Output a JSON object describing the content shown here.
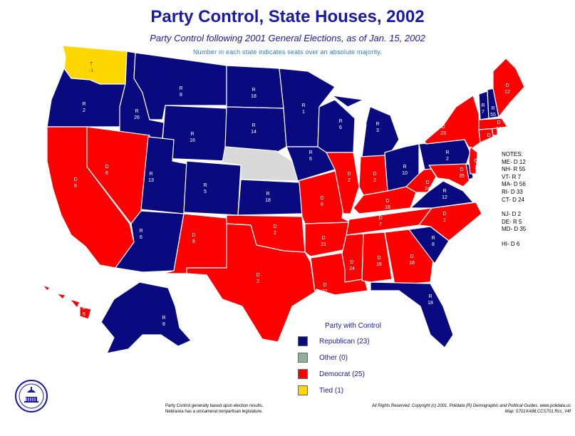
{
  "header": {
    "title": "Party Control, State Houses, 2002",
    "subtitle": "Party Control following 2001 General Elections, as of Jan. 15, 2002",
    "note": "Number in each state indicates seats over an absolute majority."
  },
  "colors": {
    "republican": "#0a0a80",
    "democrat": "#ff0000",
    "other": "#8fb09a",
    "tied": "#ffd700",
    "unicameral": "#d9d9d9",
    "water": "#ffffff"
  },
  "states": [
    {
      "id": "WA",
      "party": "tied",
      "label": [
        "T",
        "-1"
      ]
    },
    {
      "id": "OR",
      "party": "republican",
      "label": [
        "R",
        "2"
      ]
    },
    {
      "id": "CA",
      "party": "democrat",
      "label": [
        "D",
        "8"
      ]
    },
    {
      "id": "ID",
      "party": "republican",
      "label": [
        "R",
        "26"
      ]
    },
    {
      "id": "NV",
      "party": "democrat",
      "label": [
        "D",
        "6"
      ]
    },
    {
      "id": "MT",
      "party": "republican",
      "label": [
        "R",
        "8"
      ]
    },
    {
      "id": "WY",
      "party": "republican",
      "label": [
        "R",
        "16"
      ]
    },
    {
      "id": "UT",
      "party": "republican",
      "label": [
        "R",
        "13"
      ]
    },
    {
      "id": "AZ",
      "party": "republican",
      "label": [
        "R",
        "6"
      ]
    },
    {
      "id": "CO",
      "party": "republican",
      "label": [
        "R",
        "5"
      ]
    },
    {
      "id": "NM",
      "party": "democrat",
      "label": [
        "D",
        "8"
      ]
    },
    {
      "id": "ND",
      "party": "republican",
      "label": [
        "R",
        "18"
      ]
    },
    {
      "id": "SD",
      "party": "republican",
      "label": [
        "R",
        "14"
      ]
    },
    {
      "id": "NE",
      "party": "unicameral",
      "label": []
    },
    {
      "id": "KS",
      "party": "republican",
      "label": [
        "R",
        "18"
      ]
    },
    {
      "id": "OK",
      "party": "democrat",
      "label": [
        "D",
        "2"
      ]
    },
    {
      "id": "TX",
      "party": "democrat",
      "label": [
        "D",
        "2"
      ]
    },
    {
      "id": "MN",
      "party": "republican",
      "label": [
        "R",
        "1"
      ]
    },
    {
      "id": "IA",
      "party": "republican",
      "label": [
        "R",
        "6"
      ]
    },
    {
      "id": "MO",
      "party": "democrat",
      "label": [
        "D",
        "6"
      ]
    },
    {
      "id": "AR",
      "party": "democrat",
      "label": [
        "D",
        "21"
      ]
    },
    {
      "id": "LA",
      "party": "democrat",
      "label": [
        "D",
        "21"
      ]
    },
    {
      "id": "WI",
      "party": "republican",
      "label": [
        "R",
        "6"
      ]
    },
    {
      "id": "IL",
      "party": "democrat",
      "label": [
        "D",
        "2"
      ]
    },
    {
      "id": "MI",
      "party": "republican",
      "label": [
        "R",
        "3"
      ]
    },
    {
      "id": "IN",
      "party": "democrat",
      "label": [
        "D",
        "2"
      ]
    },
    {
      "id": "OH",
      "party": "republican",
      "label": [
        "R",
        "10"
      ]
    },
    {
      "id": "KY",
      "party": "democrat",
      "label": [
        "D",
        "18"
      ]
    },
    {
      "id": "TN",
      "party": "democrat",
      "label": [
        "D",
        "7"
      ]
    },
    {
      "id": "MS",
      "party": "democrat",
      "label": [
        "D",
        "24"
      ]
    },
    {
      "id": "AL",
      "party": "democrat",
      "label": [
        "D",
        "16"
      ]
    },
    {
      "id": "GA",
      "party": "democrat",
      "label": [
        "D",
        "18"
      ]
    },
    {
      "id": "FL",
      "party": "republican",
      "label": [
        "R",
        "18"
      ]
    },
    {
      "id": "SC",
      "party": "republican",
      "label": [
        "R",
        "8"
      ]
    },
    {
      "id": "NC",
      "party": "democrat",
      "label": [
        "D",
        "1"
      ]
    },
    {
      "id": "VA",
      "party": "republican",
      "label": [
        "R",
        "12"
      ]
    },
    {
      "id": "WV",
      "party": "democrat",
      "label": [
        "D",
        "24"
      ]
    },
    {
      "id": "PA",
      "party": "republican",
      "label": [
        "R",
        "2"
      ]
    },
    {
      "id": "NY",
      "party": "democrat",
      "label": [
        "D",
        "23"
      ]
    },
    {
      "id": "MD",
      "party": "democrat",
      "label": [
        "D",
        "35"
      ]
    },
    {
      "id": "DE",
      "party": "republican",
      "label": []
    },
    {
      "id": "NJ",
      "party": "democrat",
      "label": [
        "D",
        "2"
      ]
    },
    {
      "id": "CT",
      "party": "democrat",
      "label": [
        "D",
        "24"
      ]
    },
    {
      "id": "RI",
      "party": "democrat",
      "label": []
    },
    {
      "id": "MA",
      "party": "democrat",
      "label": [
        "D",
        "56"
      ]
    },
    {
      "id": "VT",
      "party": "republican",
      "label": [
        "R",
        "7"
      ]
    },
    {
      "id": "NH",
      "party": "republican",
      "label": [
        "R",
        "55"
      ]
    },
    {
      "id": "ME",
      "party": "democrat",
      "label": [
        "D",
        "12"
      ]
    },
    {
      "id": "AK",
      "party": "republican",
      "label": [
        "R",
        "8"
      ]
    },
    {
      "id": "HI",
      "party": "democrat",
      "label": [
        "D",
        "6"
      ]
    }
  ],
  "notes": {
    "heading": "NOTES:",
    "lines": [
      "ME- D 12",
      "NH- R 55",
      "VT- R 7",
      "MA- D 56",
      "RI- D 33",
      "CT- D 24",
      "NJ- D 2",
      "DE- R 5",
      "MD- D 35",
      "HI- D 6"
    ]
  },
  "legend": {
    "title": "Party with Control",
    "items": [
      {
        "key": "republican",
        "label": "Republican (23)"
      },
      {
        "key": "other",
        "label": "Other (0)"
      },
      {
        "key": "democrat",
        "label": "Democrat (25)"
      },
      {
        "key": "tied",
        "label": "Tied (1)"
      }
    ]
  },
  "footnote": {
    "line1": "Party Control generally based upon election results.",
    "line2": "Nebraska has a unicameral nonpartisan legislature."
  },
  "copyright": {
    "line1": "All Rights Reserved. Copyright (c) 2001. Polidata (R) Demographic and Political Guides. www.polidata.us",
    "line2": "Map: S701XA88,CCS701.Rcs_V4f"
  }
}
